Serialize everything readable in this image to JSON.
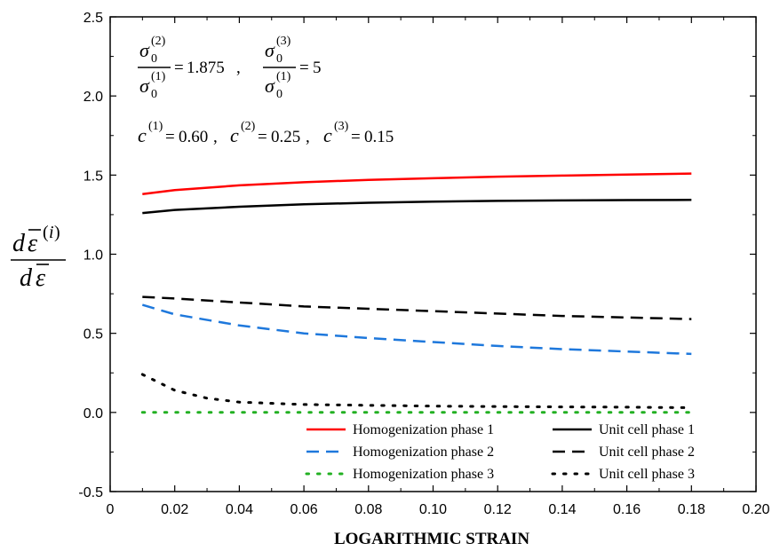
{
  "chart_data": {
    "type": "line",
    "xlabel": "LOGARITHMIC STRAIN",
    "xlim": [
      0,
      0.2
    ],
    "ylim": [
      -0.5,
      2.5
    ],
    "x_ticks": [
      "0",
      "0.02",
      "0.04",
      "0.06",
      "0.08",
      "0.10",
      "0.12",
      "0.14",
      "0.16",
      "0.18",
      "0.20"
    ],
    "y_ticks": [
      "-0.5",
      "0.0",
      "0.5",
      "1.0",
      "1.5",
      "2.0",
      "2.5"
    ],
    "grid": false,
    "legend_position": "bottom-right",
    "annotations": {
      "ratio_1": "1.875",
      "ratio_2": "5",
      "c1": "0.60",
      "c2": "0.25",
      "c3": "0.15"
    },
    "series": [
      {
        "name": "Homogenization phase 1",
        "color": "#ff0000",
        "style": "solid",
        "x": [
          0.01,
          0.02,
          0.04,
          0.06,
          0.08,
          0.1,
          0.12,
          0.14,
          0.16,
          0.18
        ],
        "y": [
          1.38,
          1.405,
          1.435,
          1.455,
          1.47,
          1.48,
          1.49,
          1.497,
          1.503,
          1.51
        ]
      },
      {
        "name": "Unit cell phase 1",
        "color": "#000000",
        "style": "solid",
        "x": [
          0.01,
          0.02,
          0.04,
          0.06,
          0.08,
          0.1,
          0.12,
          0.14,
          0.16,
          0.18
        ],
        "y": [
          1.26,
          1.28,
          1.3,
          1.315,
          1.325,
          1.332,
          1.337,
          1.34,
          1.342,
          1.343
        ]
      },
      {
        "name": "Homogenization phase 2",
        "color": "#1e78dc",
        "style": "dashed",
        "x": [
          0.01,
          0.02,
          0.04,
          0.06,
          0.08,
          0.1,
          0.12,
          0.14,
          0.16,
          0.18
        ],
        "y": [
          0.68,
          0.62,
          0.55,
          0.5,
          0.47,
          0.445,
          0.42,
          0.4,
          0.385,
          0.37
        ]
      },
      {
        "name": "Unit cell phase 2",
        "color": "#000000",
        "style": "dashed",
        "x": [
          0.01,
          0.02,
          0.04,
          0.06,
          0.08,
          0.1,
          0.12,
          0.14,
          0.16,
          0.18
        ],
        "y": [
          0.73,
          0.72,
          0.695,
          0.67,
          0.655,
          0.64,
          0.625,
          0.61,
          0.6,
          0.59
        ]
      },
      {
        "name": "Homogenization phase 3",
        "color": "#22b022",
        "style": "dotted",
        "x": [
          0.01,
          0.18
        ],
        "y": [
          0.0,
          0.0
        ]
      },
      {
        "name": "Unit cell phase 3",
        "color": "#000000",
        "style": "dotted",
        "x": [
          0.01,
          0.02,
          0.03,
          0.04,
          0.06,
          0.08,
          0.1,
          0.12,
          0.14,
          0.16,
          0.18
        ],
        "y": [
          0.24,
          0.14,
          0.09,
          0.065,
          0.05,
          0.045,
          0.04,
          0.037,
          0.035,
          0.033,
          0.03
        ]
      }
    ]
  }
}
